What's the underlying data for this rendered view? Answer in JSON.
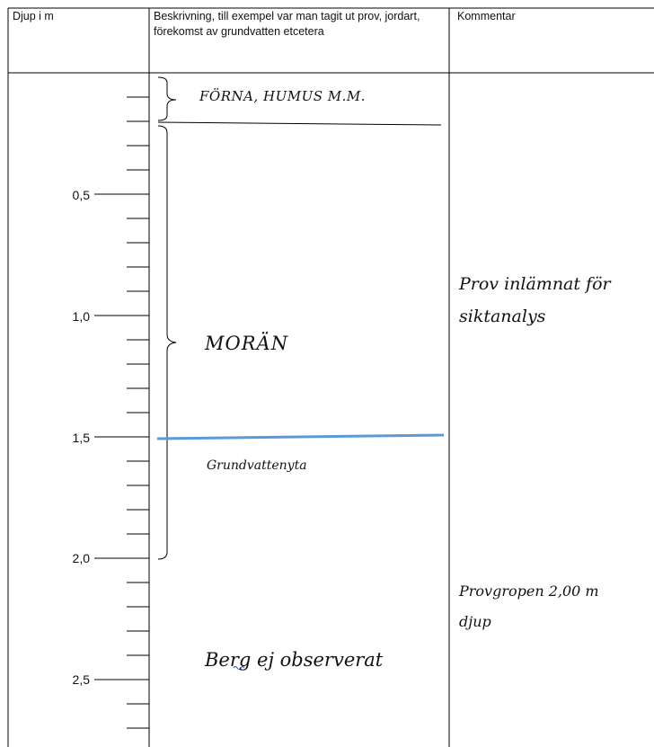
{
  "table": {
    "headers": {
      "depth": "Djup i m",
      "description": "Beskrivning, till exempel var man tagit ut prov, jordart, förekomst av grundvatten etcetera",
      "comment": "Kommentar"
    }
  },
  "depth_scale": {
    "tick_labels": [
      "0,5",
      "1,0",
      "1,5",
      "2,0",
      "2,5"
    ]
  },
  "annotations": {
    "forna": "FÖRNA, HUMUS M.M.",
    "moran": "MORÄN",
    "groundwater": "Grundvattenyta",
    "bedrock": "Berg ej observerat"
  },
  "comments": {
    "sample": [
      "Prov inlämnat för",
      "siktanalys"
    ],
    "pit_depth": [
      "Provgropen 2,00 m",
      "djup"
    ]
  },
  "colors": {
    "groundwater_line": "#5b9bd5",
    "grid": "#000000",
    "spellcheck_squiggle": "#1f4fd0"
  }
}
